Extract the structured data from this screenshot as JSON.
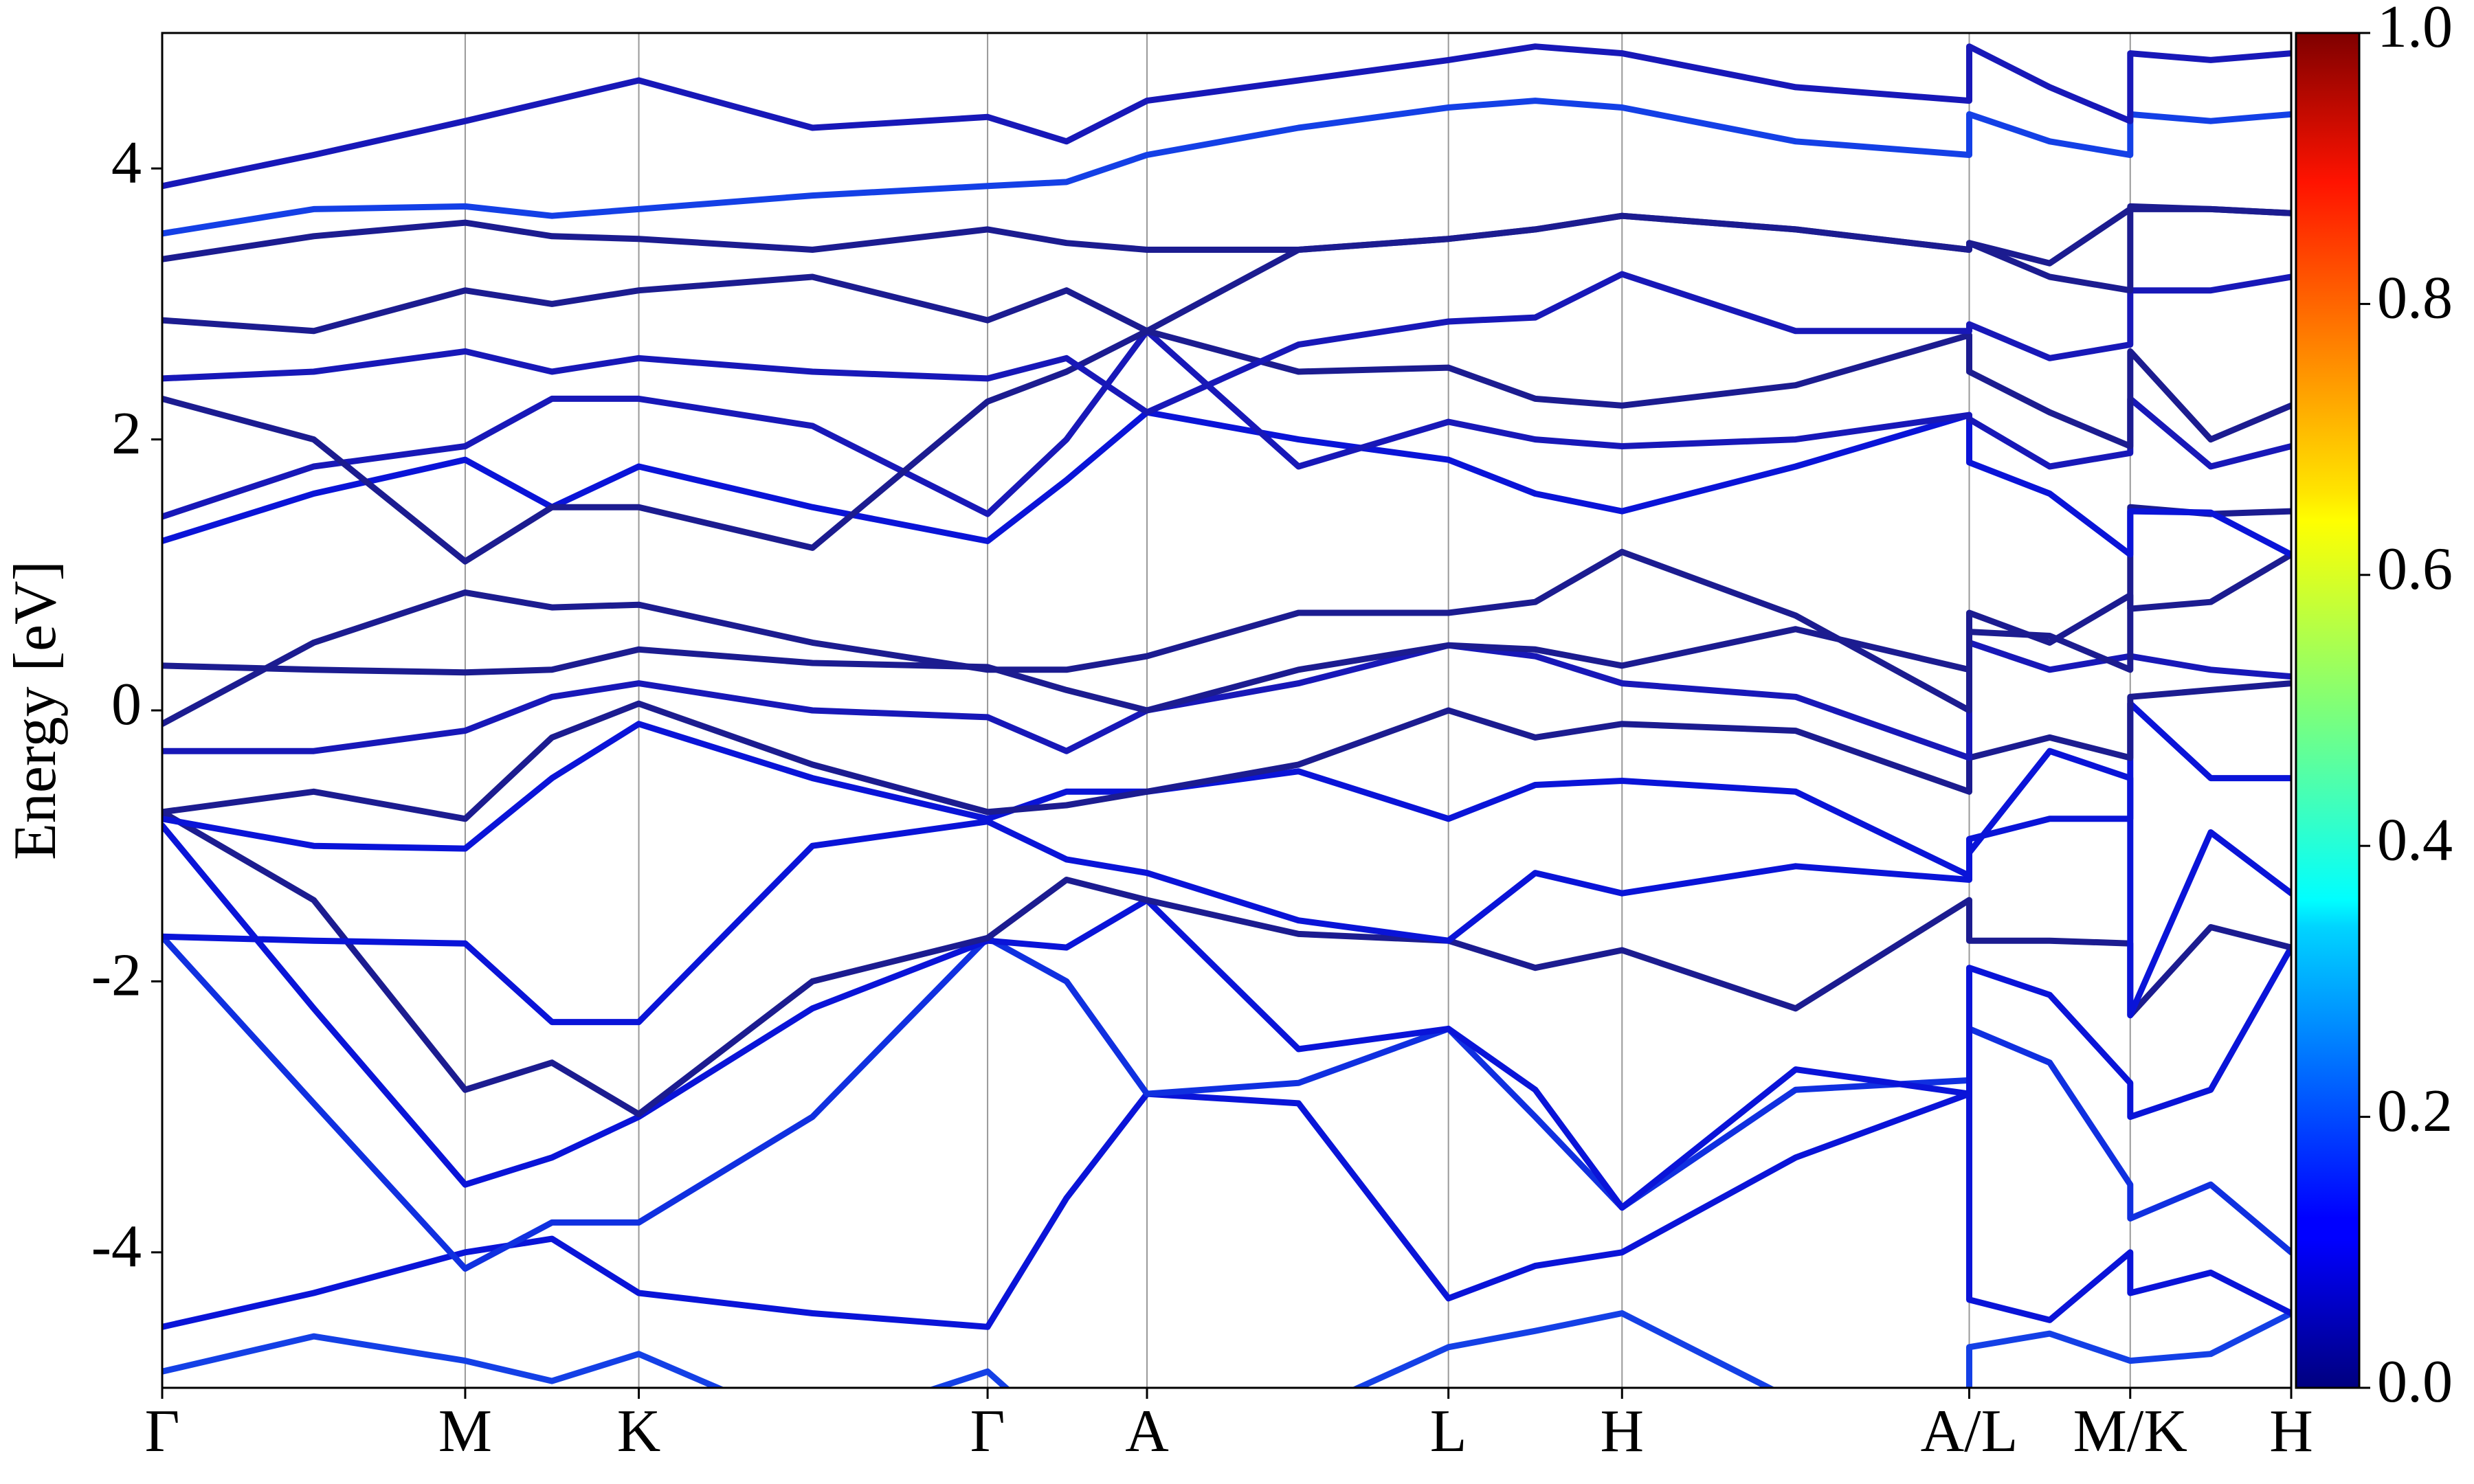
{
  "chart_data": {
    "type": "line",
    "ylabel": "Energy [eV]",
    "x": [
      0,
      0.96,
      1.92,
      2.47,
      3.02,
      4.12,
      5.23,
      5.73,
      6.24,
      7.2,
      8.15,
      8.7,
      9.25,
      10.35,
      11.45,
      11.45,
      11.96,
      12.47,
      12.47,
      12.98,
      13.49
    ],
    "xlim": [
      0,
      13.49
    ],
    "xticks": [
      {
        "value": 0,
        "label": "Γ"
      },
      {
        "value": 1.92,
        "label": "M"
      },
      {
        "value": 3.02,
        "label": "K"
      },
      {
        "value": 5.23,
        "label": "Γ"
      },
      {
        "value": 6.24,
        "label": "A"
      },
      {
        "value": 8.15,
        "label": "L"
      },
      {
        "value": 9.25,
        "label": "H"
      },
      {
        "value": 11.45,
        "label": "A/L"
      },
      {
        "value": 12.47,
        "label": "M/K"
      },
      {
        "value": 13.49,
        "label": "H"
      }
    ],
    "ylim": [
      -5,
      5
    ],
    "yticks": [
      -4,
      -2,
      0,
      2,
      4
    ],
    "grid": true,
    "series": [
      {
        "color": "#1440e6",
        "values": [
          -4.88,
          -4.62,
          -4.8,
          -4.95,
          -4.75,
          -5.3,
          -4.88,
          -5.4,
          -5.6,
          -5.2,
          -4.7,
          -4.58,
          -4.45,
          -5.1,
          -5.5,
          -4.7,
          -4.6,
          -4.8,
          -4.8,
          -4.75,
          -4.45
        ]
      },
      {
        "color": "#0a14d8",
        "values": [
          -4.55,
          -4.3,
          -4.0,
          -3.9,
          -4.3,
          -4.45,
          -4.55,
          -3.6,
          -2.83,
          -2.9,
          -4.34,
          -4.1,
          -4.0,
          -3.3,
          -2.83,
          -4.35,
          -4.5,
          -4.0,
          -4.3,
          -4.15,
          -4.45
        ]
      },
      {
        "color": "#1030e0",
        "values": [
          -1.67,
          -2.9,
          -4.12,
          -3.78,
          -3.78,
          -3.0,
          -1.68,
          -2.0,
          -2.83,
          -2.75,
          -2.35,
          -3.0,
          -3.67,
          -2.8,
          -2.73,
          -2.35,
          -2.6,
          -3.5,
          -3.75,
          -3.5,
          -4.0
        ]
      },
      {
        "color": "#0a14d8",
        "values": [
          -0.85,
          -2.2,
          -3.5,
          -3.3,
          -3.0,
          -2.2,
          -1.7,
          -1.75,
          -1.4,
          -2.5,
          -2.35,
          -2.8,
          -3.67,
          -2.65,
          -2.83,
          -1.9,
          -2.1,
          -2.75,
          -3.0,
          -2.8,
          -1.75
        ]
      },
      {
        "color": "#1c1c90",
        "values": [
          -0.75,
          -1.4,
          -2.8,
          -2.6,
          -2.98,
          -2.0,
          -1.68,
          -1.25,
          -1.4,
          -1.65,
          -1.7,
          -1.9,
          -1.77,
          -2.2,
          -1.4,
          -1.7,
          -1.7,
          -1.72,
          -2.25,
          -1.6,
          -1.75
        ]
      },
      {
        "color": "#0a14d8",
        "values": [
          -1.67,
          -1.7,
          -1.72,
          -2.3,
          -2.3,
          -1.0,
          -0.82,
          -1.1,
          -1.2,
          -1.55,
          -1.7,
          -1.2,
          -1.35,
          -1.15,
          -1.25,
          -1.05,
          -0.3,
          -0.5,
          -2.25,
          -0.9,
          -1.35
        ]
      },
      {
        "color": "#0a14d8",
        "values": [
          -0.8,
          -1.0,
          -1.02,
          -0.5,
          -0.1,
          -0.5,
          -0.8,
          -0.6,
          -0.6,
          -0.45,
          -0.8,
          -0.55,
          -0.52,
          -0.6,
          -1.22,
          -0.95,
          -0.8,
          -0.8,
          0.05,
          -0.5,
          -0.5
        ]
      },
      {
        "color": "#1c1c90",
        "values": [
          -0.75,
          -0.6,
          -0.8,
          -0.2,
          0.05,
          -0.4,
          -0.75,
          -0.7,
          -0.6,
          -0.4,
          0.0,
          -0.2,
          -0.1,
          -0.15,
          -0.6,
          -0.35,
          -0.2,
          -0.35,
          0.1,
          0.15,
          0.2
        ]
      },
      {
        "color": "#1818b8",
        "values": [
          -0.3,
          -0.3,
          -0.15,
          0.1,
          0.2,
          0.0,
          -0.05,
          -0.3,
          0.0,
          0.2,
          0.48,
          0.4,
          0.2,
          0.1,
          -0.35,
          0.5,
          0.3,
          0.4,
          0.4,
          0.3,
          0.25
        ]
      },
      {
        "color": "#1c1c90",
        "values": [
          0.33,
          0.3,
          0.28,
          0.3,
          0.45,
          0.35,
          0.32,
          0.15,
          0.0,
          0.3,
          0.48,
          0.45,
          0.33,
          0.6,
          0.3,
          0.72,
          0.5,
          0.85,
          0.75,
          0.8,
          1.15
        ]
      },
      {
        "color": "#1c1c90",
        "values": [
          -0.1,
          0.5,
          0.87,
          0.76,
          0.78,
          0.5,
          0.3,
          0.3,
          0.4,
          0.72,
          0.72,
          0.8,
          1.17,
          0.7,
          0.0,
          0.58,
          0.55,
          0.3,
          1.5,
          1.45,
          1.47
        ]
      },
      {
        "color": "#0a14d8",
        "values": [
          1.25,
          1.6,
          1.85,
          1.5,
          1.8,
          1.5,
          1.25,
          1.7,
          2.2,
          2.0,
          1.85,
          1.6,
          1.47,
          1.8,
          2.18,
          1.83,
          1.6,
          1.15,
          1.47,
          1.46,
          1.15
        ]
      },
      {
        "color": "#1818b8",
        "values": [
          1.43,
          1.8,
          1.95,
          2.3,
          2.3,
          2.1,
          1.45,
          2.0,
          2.8,
          1.8,
          2.13,
          2.0,
          1.95,
          2.0,
          2.18,
          2.15,
          1.8,
          1.9,
          2.3,
          1.8,
          1.95
        ]
      },
      {
        "color": "#1c1c90",
        "values": [
          2.3,
          2.0,
          1.1,
          1.5,
          1.5,
          1.2,
          2.28,
          2.5,
          2.8,
          2.5,
          2.53,
          2.3,
          2.25,
          2.4,
          2.77,
          2.5,
          2.2,
          1.95,
          2.65,
          2.0,
          2.25
        ]
      },
      {
        "color": "#1818b8",
        "values": [
          2.45,
          2.5,
          2.65,
          2.5,
          2.6,
          2.5,
          2.45,
          2.6,
          2.2,
          2.7,
          2.87,
          2.9,
          3.22,
          2.8,
          2.8,
          2.85,
          2.6,
          2.7,
          3.1,
          3.1,
          3.2
        ]
      },
      {
        "color": "#1c1c90",
        "values": [
          2.88,
          2.8,
          3.1,
          3.0,
          3.1,
          3.2,
          2.88,
          3.1,
          2.8,
          3.4,
          3.48,
          3.55,
          3.65,
          3.55,
          3.4,
          3.45,
          3.2,
          3.1,
          3.7,
          3.7,
          3.67
        ]
      },
      {
        "color": "#1c1c90",
        "values": [
          3.33,
          3.5,
          3.6,
          3.5,
          3.48,
          3.4,
          3.55,
          3.45,
          3.4,
          3.4,
          3.48,
          3.55,
          3.65,
          3.55,
          3.4,
          3.45,
          3.3,
          3.7,
          3.72,
          3.7,
          3.67
        ]
      },
      {
        "color": "#1440e6",
        "values": [
          3.52,
          3.7,
          3.72,
          3.65,
          3.7,
          3.8,
          3.87,
          3.9,
          4.1,
          4.3,
          4.45,
          4.5,
          4.45,
          4.2,
          4.1,
          4.4,
          4.2,
          4.1,
          4.4,
          4.35,
          4.4
        ]
      },
      {
        "color": "#1818b8",
        "values": [
          3.87,
          4.1,
          4.35,
          4.5,
          4.65,
          4.3,
          4.38,
          4.2,
          4.5,
          4.65,
          4.8,
          4.9,
          4.85,
          4.6,
          4.5,
          4.9,
          4.6,
          4.35,
          4.85,
          4.8,
          4.85
        ]
      }
    ],
    "colorbar": {
      "cmap": "jet",
      "lim": [
        0,
        1
      ],
      "ticks": [
        {
          "value": 0,
          "label": "0.0"
        },
        0.2,
        0.4,
        0.6,
        0.8,
        {
          "value": 1,
          "label": "1.0"
        }
      ]
    }
  }
}
